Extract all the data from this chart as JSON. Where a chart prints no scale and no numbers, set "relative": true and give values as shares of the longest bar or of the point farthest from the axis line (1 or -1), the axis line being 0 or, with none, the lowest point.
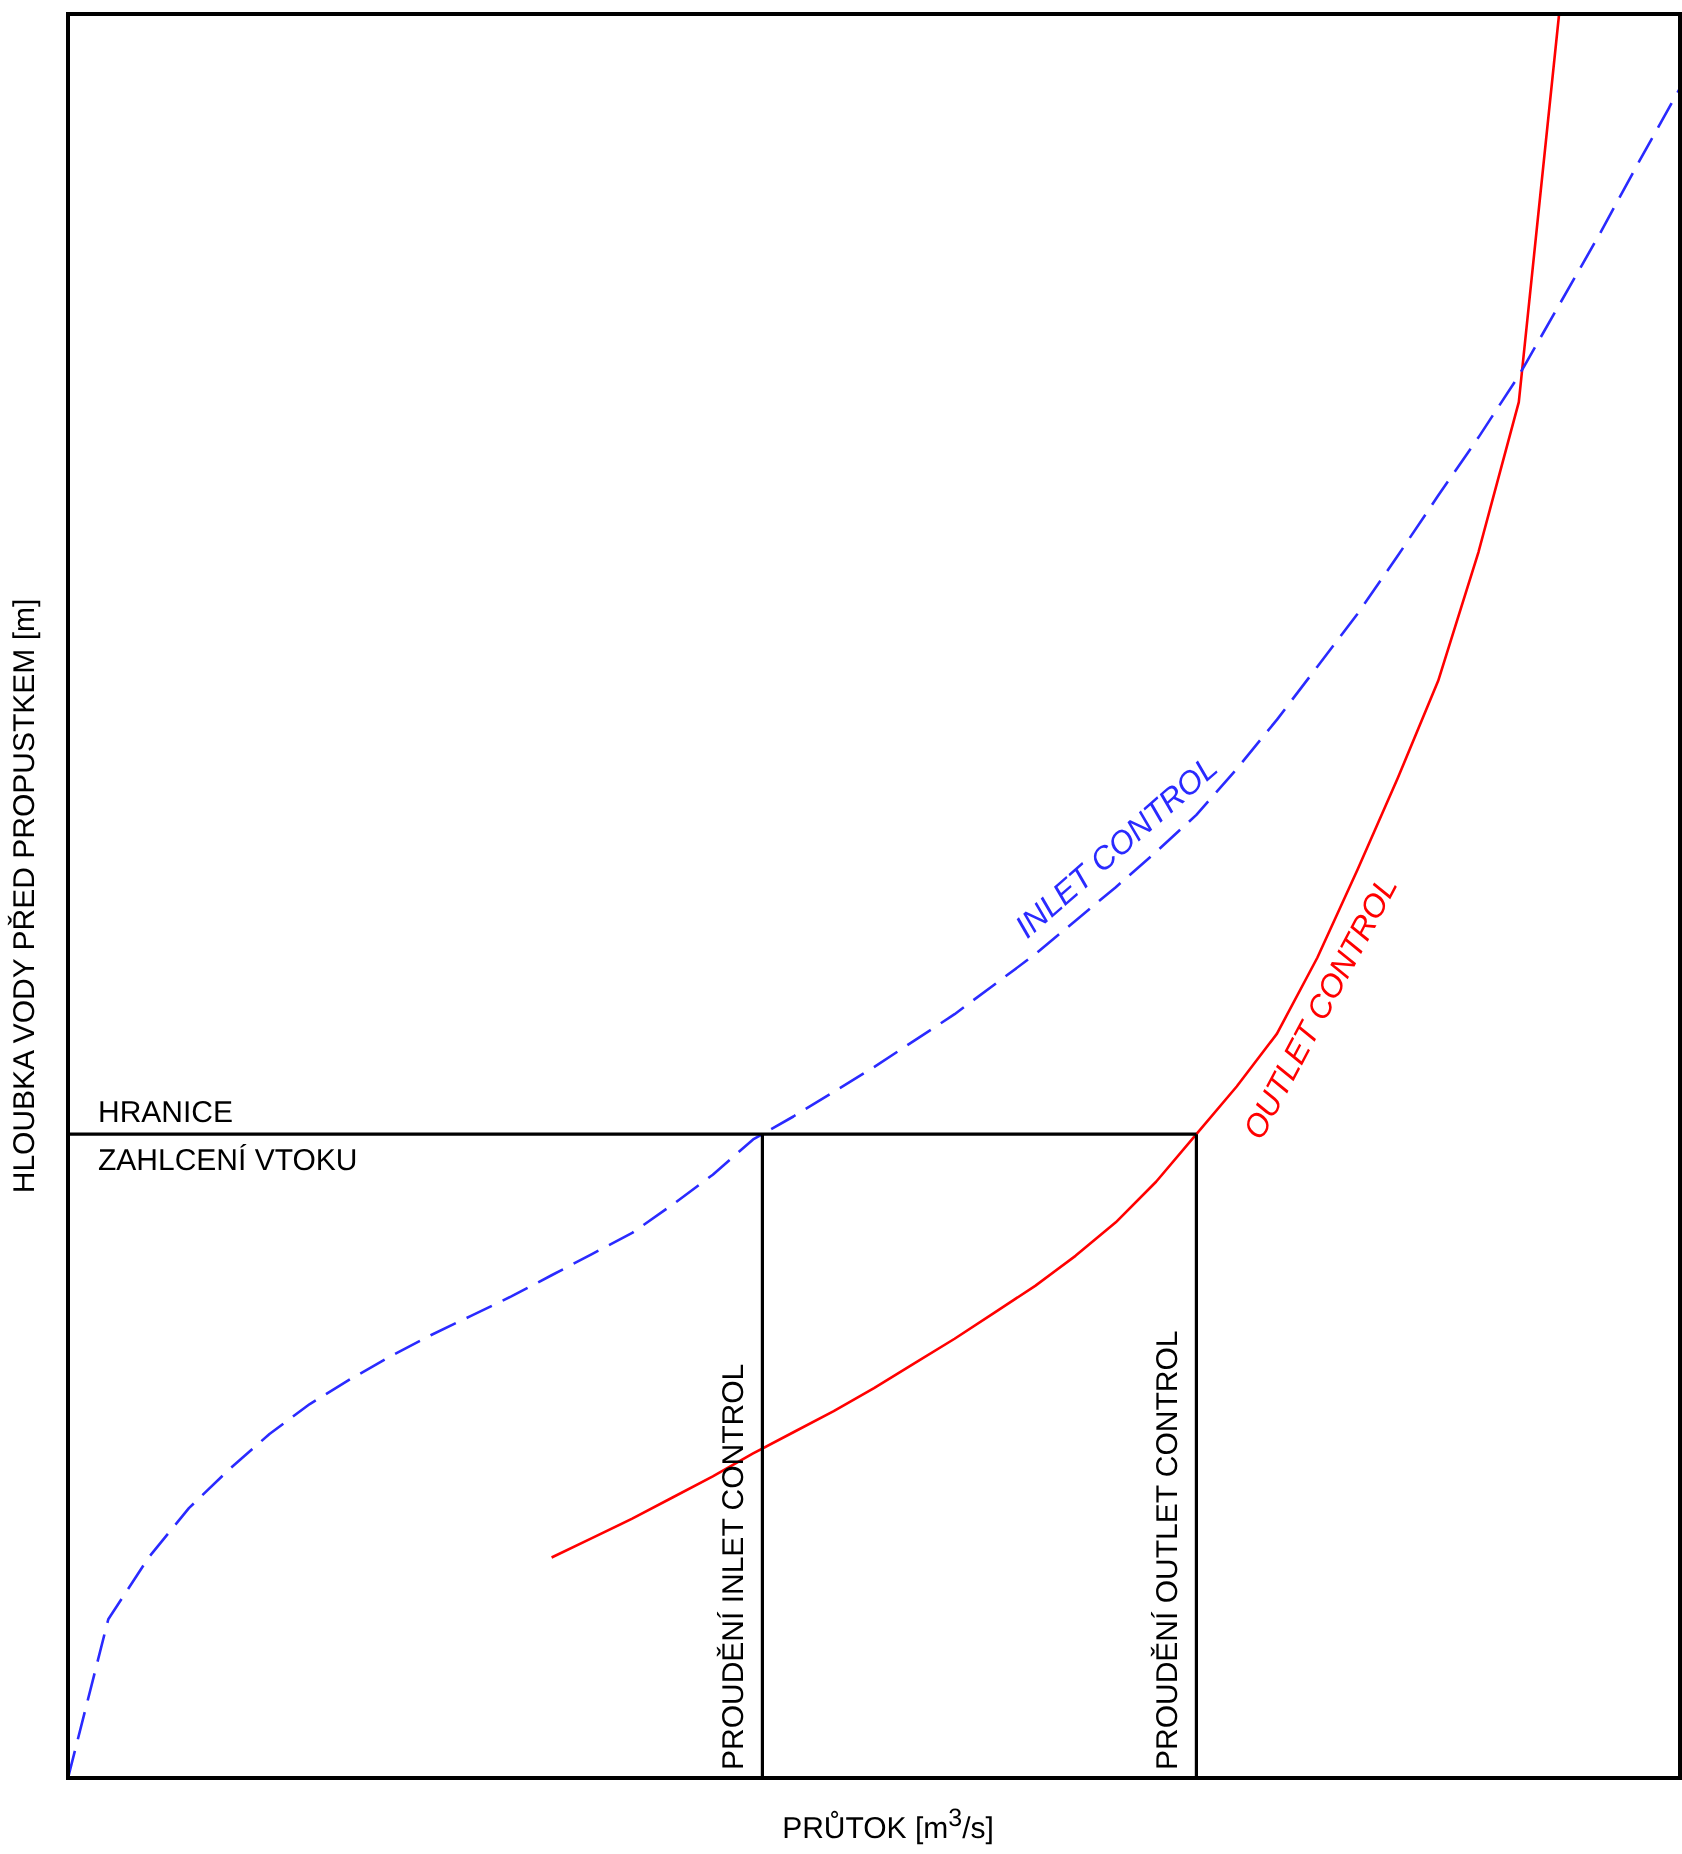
{
  "chart_data": {
    "type": "line",
    "relative": true,
    "xlabel": "PRŮTOK [m$^{3}$/s]",
    "ylabel": "HLOUBKA VODY PŘED PROPUSTKEM [m]",
    "grid": false,
    "legend": false,
    "marker": "none",
    "categories": [
      null,
      null,
      null,
      null,
      null,
      null,
      null,
      null,
      null,
      null,
      null,
      null,
      null,
      null,
      null,
      null,
      null,
      null,
      null,
      null,
      null,
      null,
      null,
      null,
      null,
      null,
      null,
      null,
      null,
      null,
      null,
      null,
      null,
      null,
      null,
      null,
      null,
      null,
      null,
      null,
      null
    ],
    "series": [
      {
        "name": "INLET CONTROL",
        "color": "#2a2aff",
        "line_style": "dashed",
        "values": [
          0,
          0.09,
          0.125,
          0.153,
          0.175,
          0.195,
          0.212,
          0.226,
          0.239,
          0.251,
          0.262,
          0.273,
          0.285,
          0.297,
          0.309,
          0.325,
          0.342,
          0.362,
          0.375,
          0.389,
          0.403,
          0.418,
          0.433,
          0.45,
          0.467,
          0.486,
          0.505,
          0.525,
          0.546,
          0.572,
          0.6,
          0.63,
          0.66,
          0.693,
          0.727,
          0.76,
          0.795,
          0.835,
          0.875,
          0.917,
          0.958
        ]
      },
      {
        "name": "OUTLET CONTROL",
        "color": "#ff0000",
        "line_style": "solid",
        "values": [
          null,
          null,
          null,
          null,
          null,
          null,
          null,
          null,
          null,
          null,
          null,
          null,
          0.125,
          0.136,
          0.147,
          0.159,
          0.171,
          0.184,
          0.196,
          0.208,
          0.221,
          0.235,
          0.249,
          0.264,
          0.279,
          0.296,
          0.315,
          0.338,
          0.365,
          0.392,
          0.422,
          0.465,
          0.515,
          0.567,
          0.622,
          0.695,
          0.78,
          1.0,
          null,
          null,
          null
        ]
      }
    ],
    "ref_lines": [
      {
        "axis": "y",
        "value": 0.365,
        "label": "HRANICE\nZAHLCENÍ VTOKU",
        "color": "#000000"
      }
    ],
    "annotations": [
      "PROUDĚNÍ INLET CONTROL",
      "PROUDĚNÍ OUTLET CONTROL"
    ]
  }
}
